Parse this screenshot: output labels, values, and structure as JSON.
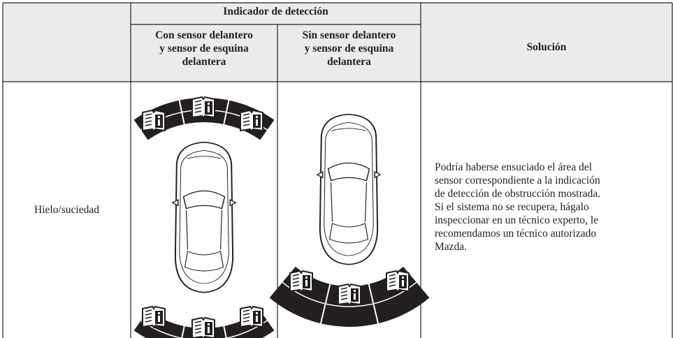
{
  "header": {
    "title": "Indicador de detección",
    "columns": [
      [
        "Con sensor delantero",
        "y sensor de esquina",
        "delantera"
      ],
      [
        "Sin sensor delantero",
        "y sensor de esquina",
        "delantera"
      ]
    ],
    "solution": "Solución"
  },
  "table": {
    "rows": [
      {
        "condition": "Hielo/suciedad",
        "solution": [
          "Podría haberse ensuciado el área del",
          "sensor correspondiente a la indicación",
          "de detección de obstrucción mostrada.",
          "Si el sistema no se recupera, hágalo",
          "inspeccionar en un técnico experto, le",
          "recomendamos un técnico autorizado",
          "Mazda."
        ]
      }
    ]
  }
}
